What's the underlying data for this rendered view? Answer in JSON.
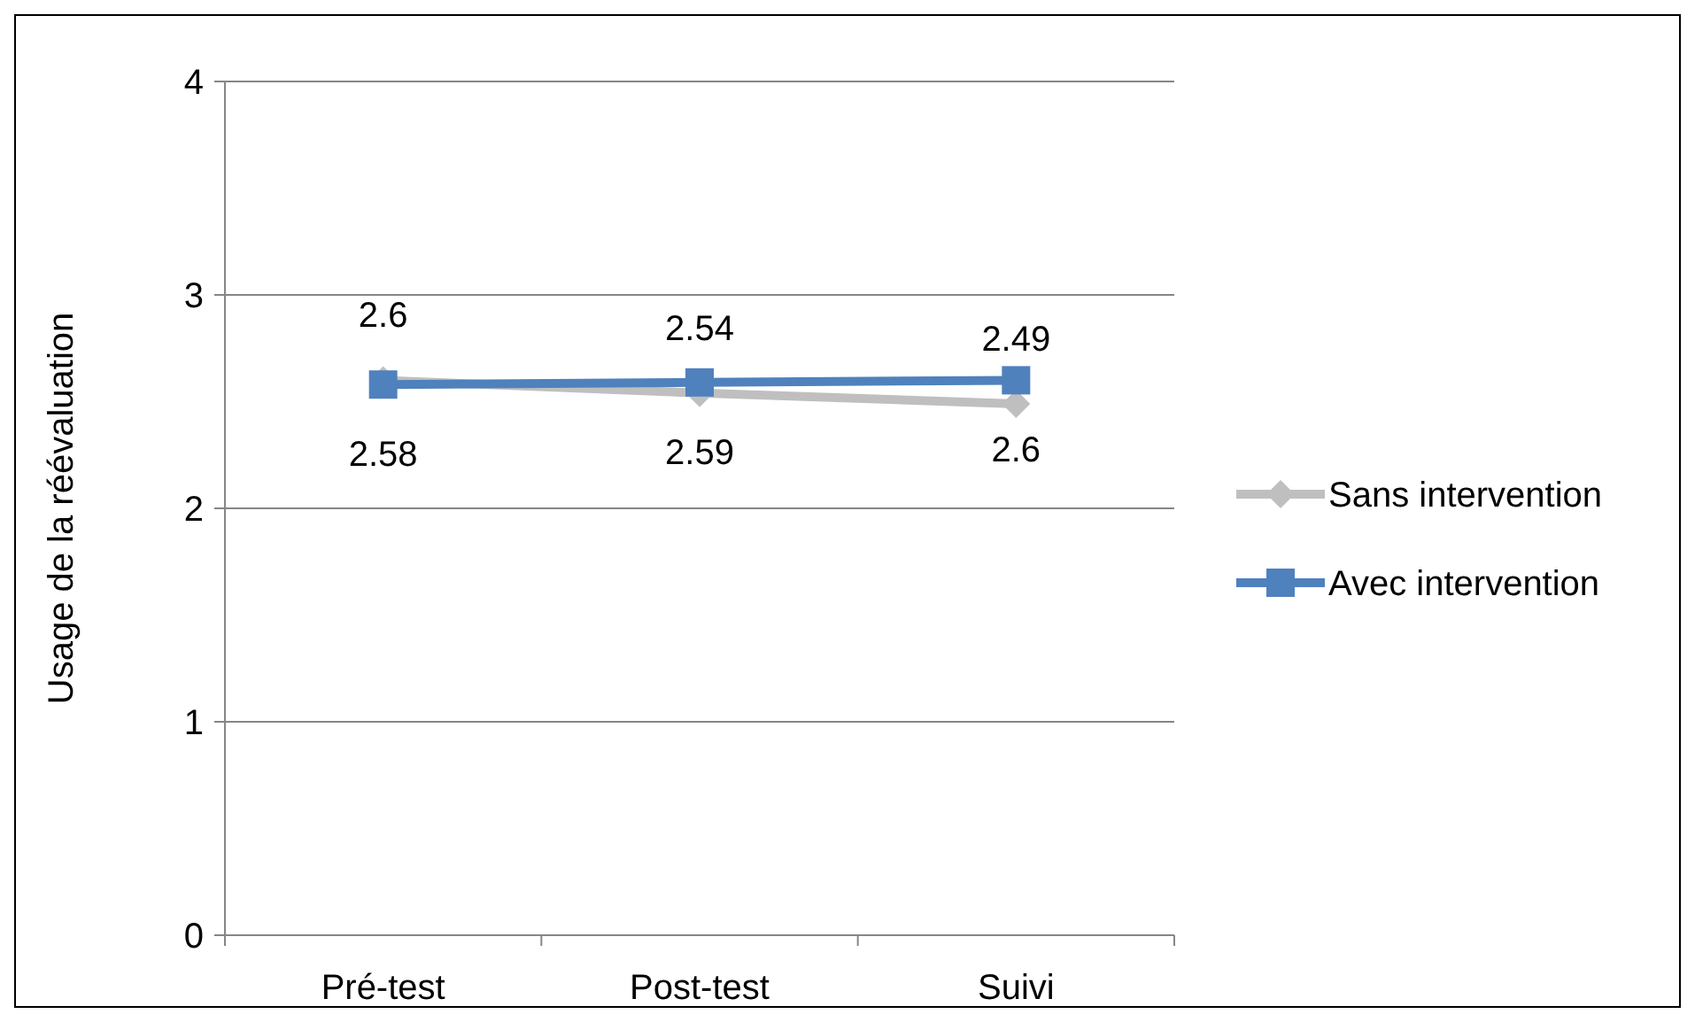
{
  "chart_data": {
    "type": "line",
    "ylabel": "Usage de la réévaluation",
    "categories": [
      "Pré-test",
      "Post-test",
      "Suivi"
    ],
    "series": [
      {
        "name": "Sans intervention",
        "color": "#bfbfbf",
        "marker": "diamond",
        "values": [
          2.6,
          2.54,
          2.49
        ]
      },
      {
        "name": "Avec intervention",
        "color": "#4f81bd",
        "marker": "square",
        "values": [
          2.58,
          2.59,
          2.6
        ]
      }
    ],
    "ylim": [
      0,
      4
    ],
    "yticks": [
      0,
      1,
      2,
      3,
      4
    ],
    "grid": "y",
    "legend": "right",
    "data_labels": true
  }
}
